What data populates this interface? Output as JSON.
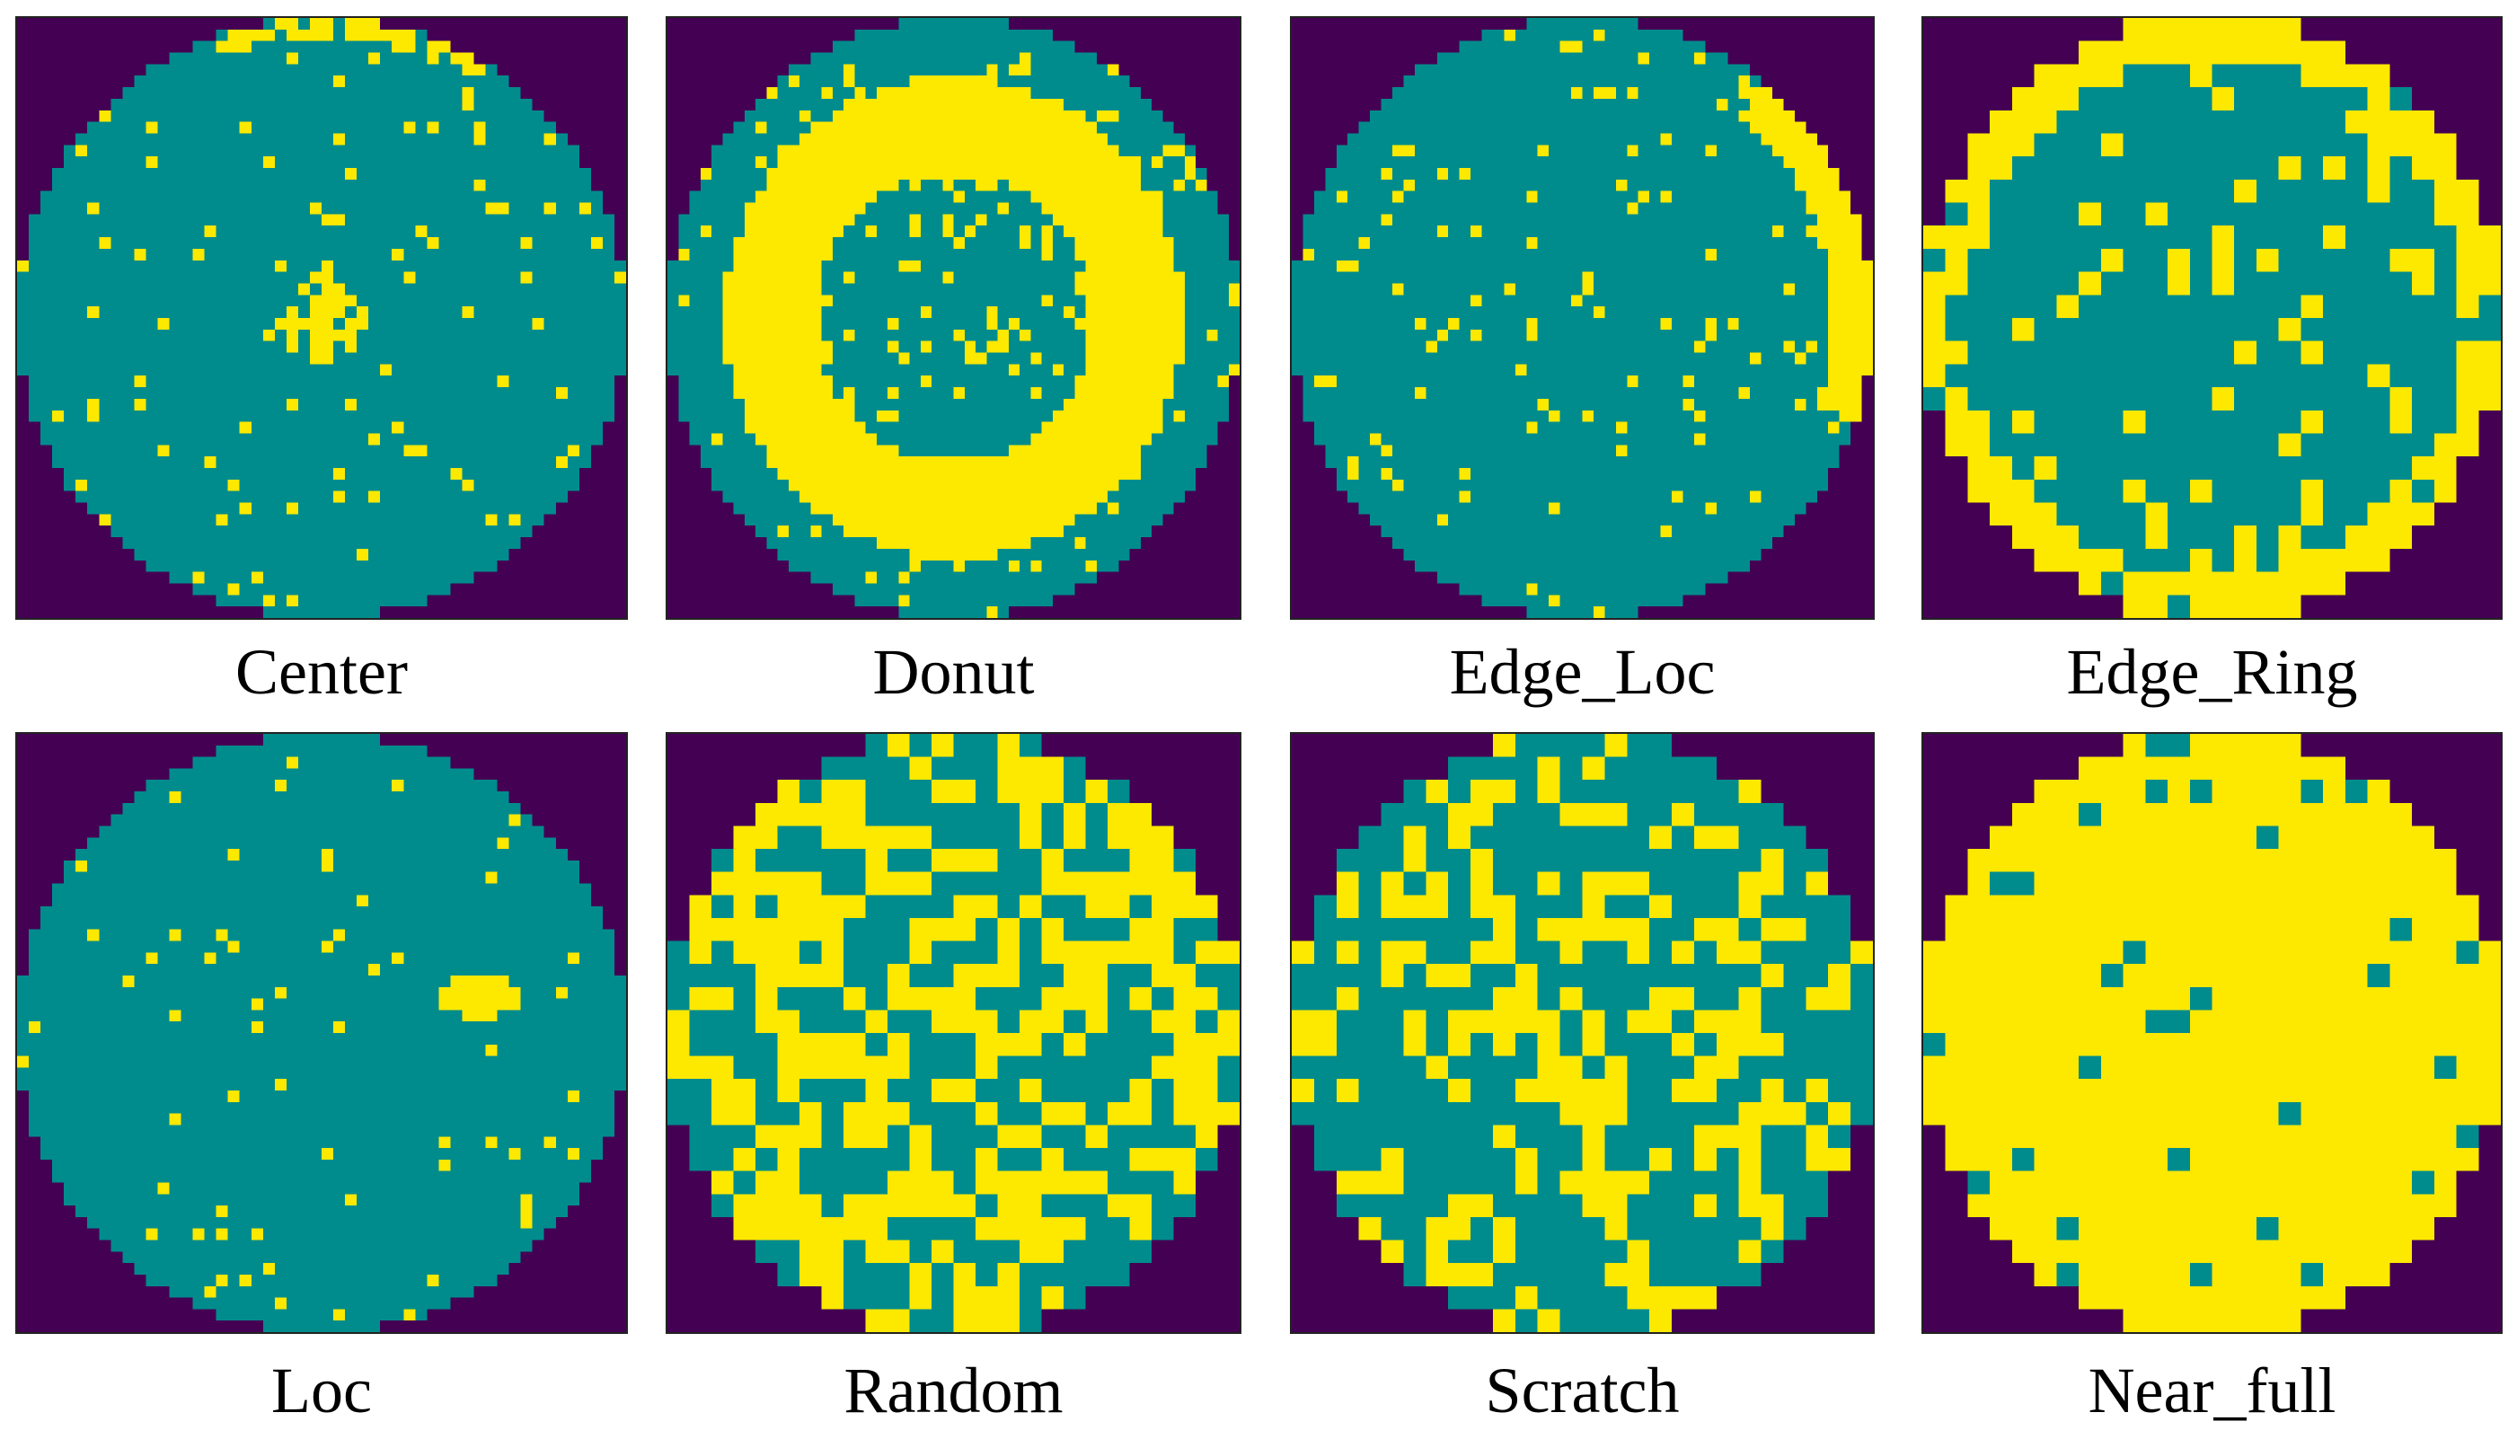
{
  "colors": {
    "background": "#440154",
    "pass": "#008c8c",
    "fail": "#fde800"
  },
  "panels": [
    {
      "label": "Center",
      "pattern": "center",
      "grid": 52
    },
    {
      "label": "Donut",
      "pattern": "donut",
      "grid": 52
    },
    {
      "label": "Edge_Loc",
      "pattern": "edge_loc",
      "grid": 52
    },
    {
      "label": "Edge_Ring",
      "pattern": "edge_ring",
      "grid": 26
    },
    {
      "label": "Loc",
      "pattern": "loc",
      "grid": 52
    },
    {
      "label": "Random",
      "pattern": "random",
      "grid": 26
    },
    {
      "label": "Scratch",
      "pattern": "scratch",
      "grid": 26
    },
    {
      "label": "Near_full",
      "pattern": "near_full",
      "grid": 26
    }
  ]
}
